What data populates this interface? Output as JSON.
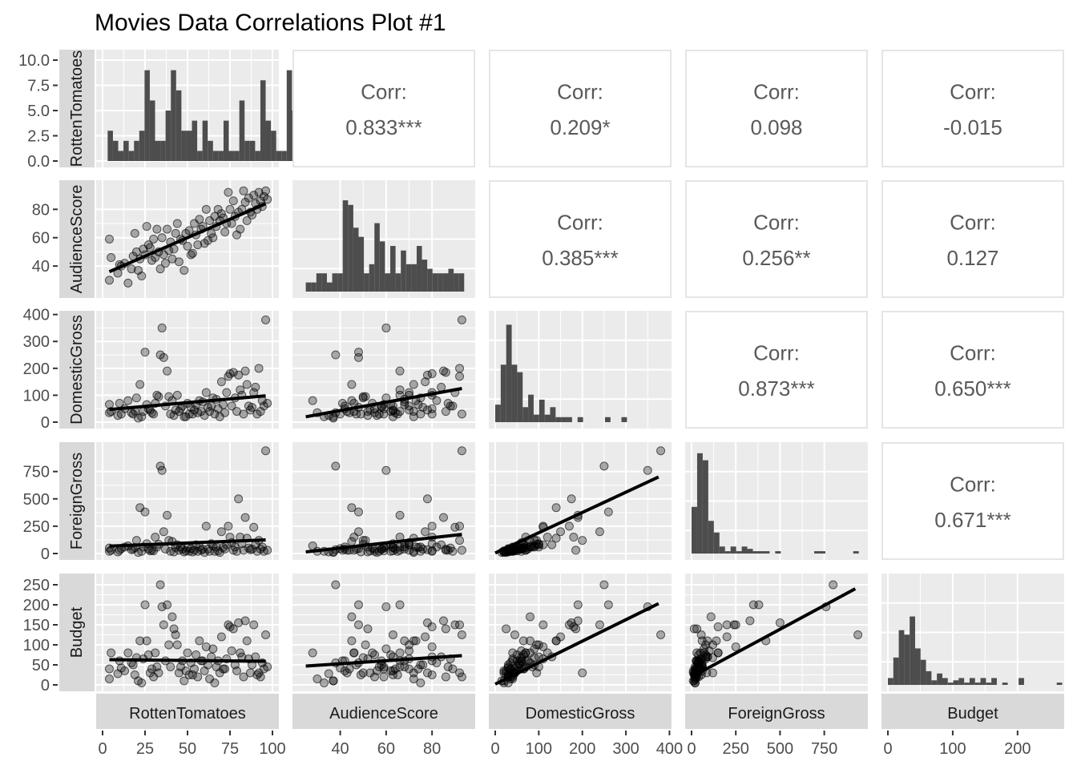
{
  "chart_data": {
    "type": "scatter-matrix",
    "title": "Movies Data Correlations Plot #1",
    "variables": [
      "RottenTomatoes",
      "AudienceScore",
      "DomesticGross",
      "ForeignGross",
      "Budget"
    ],
    "corr_label": "Corr:",
    "correlations": [
      {
        "row": 0,
        "col": 1,
        "value": "0.833***"
      },
      {
        "row": 0,
        "col": 2,
        "value": "0.209*"
      },
      {
        "row": 0,
        "col": 3,
        "value": "0.098"
      },
      {
        "row": 0,
        "col": 4,
        "value": "-0.015"
      },
      {
        "row": 1,
        "col": 2,
        "value": "0.385***"
      },
      {
        "row": 1,
        "col": 3,
        "value": "0.256**"
      },
      {
        "row": 1,
        "col": 4,
        "value": "0.127"
      },
      {
        "row": 2,
        "col": 3,
        "value": "0.873***"
      },
      {
        "row": 2,
        "col": 4,
        "value": "0.650***"
      },
      {
        "row": 3,
        "col": 4,
        "value": "0.671***"
      }
    ],
    "ranges": {
      "RottenTomatoes": [
        0,
        100
      ],
      "AudienceScore": [
        22,
        96
      ],
      "DomesticGross": [
        0,
        390
      ],
      "ForeignGross": [
        0,
        960
      ],
      "Budget": [
        0,
        262
      ]
    },
    "x_ticks": {
      "RottenTomatoes": [
        "0",
        "25",
        "50",
        "75",
        "100"
      ],
      "AudienceScore": [
        "40",
        "60",
        "80"
      ],
      "DomesticGross": [
        "0",
        "100",
        "200",
        "300",
        "400"
      ],
      "ForeignGross": [
        "0",
        "250",
        "500",
        "750"
      ],
      "Budget": [
        "0",
        "100",
        "200"
      ]
    },
    "x_tick_values": {
      "RottenTomatoes": [
        0,
        25,
        50,
        75,
        100
      ],
      "AudienceScore": [
        40,
        60,
        80
      ],
      "DomesticGross": [
        0,
        100,
        200,
        300,
        400
      ],
      "ForeignGross": [
        0,
        250,
        500,
        750
      ],
      "Budget": [
        0,
        100,
        200
      ]
    },
    "y_ticks": {
      "RottenTomatoes": [
        "0.0",
        "2.5",
        "5.0",
        "7.5",
        "10.0"
      ],
      "AudienceScore": [
        "40",
        "60",
        "80"
      ],
      "DomesticGross": [
        "0",
        "100",
        "200",
        "300",
        "400"
      ],
      "ForeignGross": [
        "0",
        "250",
        "500",
        "750"
      ],
      "Budget": [
        "0",
        "50",
        "100",
        "150",
        "200",
        "250"
      ]
    },
    "y_tick_values": {
      "RottenTomatoes": [
        0,
        2.5,
        5,
        7.5,
        10
      ],
      "AudienceScore": [
        40,
        60,
        80
      ],
      "DomesticGross": [
        0,
        100,
        200,
        300,
        400
      ],
      "ForeignGross": [
        0,
        250,
        500,
        750
      ],
      "Budget": [
        0,
        50,
        100,
        150,
        200,
        250
      ]
    },
    "histograms": {
      "RottenTomatoes": {
        "ymax": 10.4,
        "x0": 3,
        "binwidth": 3.1,
        "counts": [
          3,
          2,
          1,
          2,
          1,
          2,
          3,
          9,
          6,
          2,
          2,
          5,
          9,
          7,
          3,
          3,
          4,
          1,
          4,
          2,
          1,
          1,
          4,
          1,
          1,
          6,
          2,
          2,
          1,
          8,
          4,
          3,
          1,
          1,
          9,
          5,
          3,
          3,
          3
        ]
      },
      "AudienceScore": {
        "ymax": 23,
        "x0": 25,
        "binwidth": 2.3,
        "counts": [
          2,
          2,
          4,
          4,
          2,
          4,
          4,
          20,
          19,
          14,
          12,
          4,
          6,
          15,
          11,
          4,
          10,
          4,
          9,
          6,
          6,
          10,
          7,
          5,
          4,
          4,
          4,
          5,
          4,
          4
        ]
      },
      "DomesticGross": {
        "ymax": 42,
        "x0": 0,
        "binwidth": 12.6,
        "counts": [
          7,
          23,
          39,
          23,
          20,
          6,
          11,
          3,
          9,
          3,
          6,
          2,
          2,
          2,
          0,
          2,
          0,
          0,
          0,
          0,
          2,
          0,
          0,
          2
        ]
      },
      "ForeignGross": {
        "ymax": 45,
        "x0": 0,
        "binwidth": 31.5,
        "counts": [
          20,
          43,
          40,
          14,
          9,
          3,
          1,
          3,
          1,
          3,
          2,
          1,
          1,
          1,
          0,
          1,
          0,
          0,
          0,
          0,
          0,
          0,
          1,
          1,
          0,
          0,
          0,
          0,
          0,
          1
        ]
      },
      "Budget": {
        "ymax": 46,
        "x0": 0,
        "binwidth": 8.4,
        "counts": [
          3,
          12,
          24,
          22,
          30,
          16,
          11,
          6,
          2,
          5,
          3,
          1,
          2,
          3,
          1,
          3,
          1,
          3,
          1,
          3,
          0,
          1,
          0,
          0,
          3,
          0,
          0,
          0,
          0,
          0,
          0,
          1
        ]
      }
    },
    "fit_lines": {
      "1-0": [
        [
          4,
          36
        ],
        [
          96,
          84
        ]
      ],
      "2-0": [
        [
          4,
          47
        ],
        [
          96,
          98
        ]
      ],
      "2-1": [
        [
          25,
          20
        ],
        [
          93,
          125
        ]
      ],
      "3-0": [
        [
          4,
          68
        ],
        [
          96,
          125
        ]
      ],
      "3-1": [
        [
          25,
          15
        ],
        [
          93,
          175
        ]
      ],
      "3-2": [
        [
          0,
          5
        ],
        [
          375,
          700
        ]
      ],
      "4-0": [
        [
          4,
          63
        ],
        [
          96,
          59
        ]
      ],
      "4-1": [
        [
          25,
          47
        ],
        [
          93,
          73
        ]
      ],
      "4-2": [
        [
          0,
          2
        ],
        [
          375,
          203
        ]
      ],
      "4-3": [
        [
          0,
          20
        ],
        [
          925,
          240
        ]
      ]
    },
    "movies": [
      {
        "rt": 4,
        "as": 59,
        "dg": 66,
        "fg": 50,
        "bu": 40
      },
      {
        "rt": 4,
        "as": 30,
        "dg": 35,
        "fg": 20,
        "bu": 15
      },
      {
        "rt": 5,
        "as": 46,
        "dg": 40,
        "fg": 30,
        "bu": 80
      },
      {
        "rt": 9,
        "as": 35,
        "dg": 25,
        "fg": 15,
        "bu": 28
      },
      {
        "rt": 11,
        "as": 40,
        "dg": 30,
        "fg": 45,
        "bu": 42
      },
      {
        "rt": 13,
        "as": 42,
        "dg": 50,
        "fg": 60,
        "bu": 35
      },
      {
        "rt": 15,
        "as": 28,
        "dg": 80,
        "fg": 70,
        "bu": 80
      },
      {
        "rt": 17,
        "as": 38,
        "dg": 35,
        "fg": 35,
        "bu": 55
      },
      {
        "rt": 19,
        "as": 63,
        "dg": 42,
        "fg": 55,
        "bu": 25
      },
      {
        "rt": 20,
        "as": 50,
        "dg": 90,
        "fg": 120,
        "bu": 68
      },
      {
        "rt": 22,
        "as": 45,
        "dg": 140,
        "fg": 420,
        "bu": 110
      },
      {
        "rt": 23,
        "as": 33,
        "dg": 20,
        "fg": 20,
        "bu": 5
      },
      {
        "rt": 24,
        "as": 52,
        "dg": 40,
        "fg": 60,
        "bu": 65
      },
      {
        "rt": 25,
        "as": 48,
        "dg": 260,
        "fg": 380,
        "bu": 200
      },
      {
        "rt": 26,
        "as": 68,
        "dg": 65,
        "fg": 90,
        "bu": 110
      },
      {
        "rt": 27,
        "as": 55,
        "dg": 50,
        "fg": 40,
        "bu": 75
      },
      {
        "rt": 29,
        "as": 44,
        "dg": 35,
        "fg": 30,
        "bu": 40
      },
      {
        "rt": 30,
        "as": 59,
        "dg": 30,
        "fg": 25,
        "bu": 20
      },
      {
        "rt": 32,
        "as": 66,
        "dg": 100,
        "fg": 60,
        "bu": 45
      },
      {
        "rt": 33,
        "as": 50,
        "dg": 95,
        "fg": 85,
        "bu": 30
      },
      {
        "rt": 34,
        "as": 38,
        "dg": 250,
        "fg": 800,
        "bu": 250
      },
      {
        "rt": 35,
        "as": 60,
        "dg": 350,
        "fg": 760,
        "bu": 195
      },
      {
        "rt": 36,
        "as": 48,
        "dg": 240,
        "fg": 200,
        "bu": 150
      },
      {
        "rt": 37,
        "as": 42,
        "dg": 60,
        "fg": 40,
        "bu": 60
      },
      {
        "rt": 38,
        "as": 66,
        "dg": 190,
        "fg": 350,
        "bu": 200
      },
      {
        "rt": 40,
        "as": 57,
        "dg": 30,
        "fg": 20,
        "bu": 45
      },
      {
        "rt": 41,
        "as": 45,
        "dg": 80,
        "fg": 110,
        "bu": 170
      },
      {
        "rt": 42,
        "as": 52,
        "dg": 25,
        "fg": 15,
        "bu": 140
      },
      {
        "rt": 43,
        "as": 63,
        "dg": 45,
        "fg": 55,
        "bu": 125
      },
      {
        "rt": 44,
        "as": 70,
        "dg": 100,
        "fg": 80,
        "bu": 100
      },
      {
        "rt": 45,
        "as": 43,
        "dg": 40,
        "fg": 30,
        "bu": 30
      },
      {
        "rt": 47,
        "as": 58,
        "dg": 60,
        "fg": 40,
        "bu": 60
      },
      {
        "rt": 48,
        "as": 37,
        "dg": 20,
        "fg": 15,
        "bu": 10
      },
      {
        "rt": 50,
        "as": 54,
        "dg": 70,
        "fg": 50,
        "bu": 80
      },
      {
        "rt": 51,
        "as": 65,
        "dg": 30,
        "fg": 20,
        "bu": 25
      },
      {
        "rt": 52,
        "as": 48,
        "dg": 55,
        "fg": 45,
        "bu": 55
      },
      {
        "rt": 54,
        "as": 70,
        "dg": 45,
        "fg": 30,
        "bu": 40
      },
      {
        "rt": 55,
        "as": 62,
        "dg": 65,
        "fg": 80,
        "bu": 75
      },
      {
        "rt": 56,
        "as": 55,
        "dg": 35,
        "fg": 20,
        "bu": 20
      },
      {
        "rt": 57,
        "as": 73,
        "dg": 80,
        "fg": 60,
        "bu": 110
      },
      {
        "rt": 58,
        "as": 66,
        "dg": 40,
        "fg": 30,
        "bu": 60
      },
      {
        "rt": 60,
        "as": 56,
        "dg": 25,
        "fg": 10,
        "bu": 35
      },
      {
        "rt": 61,
        "as": 80,
        "dg": 110,
        "fg": 250,
        "bu": 95
      },
      {
        "rt": 62,
        "as": 58,
        "dg": 55,
        "fg": 40,
        "bu": 50
      },
      {
        "rt": 63,
        "as": 72,
        "dg": 40,
        "fg": 20,
        "bu": 15
      },
      {
        "rt": 64,
        "as": 63,
        "dg": 60,
        "fg": 90,
        "bu": 70
      },
      {
        "rt": 66,
        "as": 75,
        "dg": 30,
        "fg": 20,
        "bu": 5
      },
      {
        "rt": 67,
        "as": 68,
        "dg": 85,
        "fg": 60,
        "bu": 45
      },
      {
        "rt": 68,
        "as": 80,
        "dg": 50,
        "fg": 25,
        "bu": 60
      },
      {
        "rt": 69,
        "as": 72,
        "dg": 20,
        "fg": 10,
        "bu": 30
      },
      {
        "rt": 70,
        "as": 77,
        "dg": 150,
        "fg": 200,
        "bu": 120
      },
      {
        "rt": 72,
        "as": 64,
        "dg": 35,
        "fg": 40,
        "bu": 40
      },
      {
        "rt": 73,
        "as": 70,
        "dg": 110,
        "fg": 80,
        "bu": 65
      },
      {
        "rt": 74,
        "as": 92,
        "dg": 170,
        "fg": 250,
        "bu": 150
      },
      {
        "rt": 75,
        "as": 80,
        "dg": 180,
        "fg": 150,
        "bu": 145
      },
      {
        "rt": 76,
        "as": 70,
        "dg": 60,
        "fg": 100,
        "bu": 85
      },
      {
        "rt": 77,
        "as": 86,
        "dg": 185,
        "fg": 30,
        "bu": 140
      },
      {
        "rt": 78,
        "as": 75,
        "dg": 90,
        "fg": 60,
        "bu": 50
      },
      {
        "rt": 79,
        "as": 62,
        "dg": 40,
        "fg": 20,
        "bu": 35
      },
      {
        "rt": 80,
        "as": 78,
        "dg": 175,
        "fg": 500,
        "bu": 155
      },
      {
        "rt": 81,
        "as": 66,
        "dg": 120,
        "fg": 150,
        "bu": 80
      },
      {
        "rt": 82,
        "as": 80,
        "dg": 100,
        "fg": 90,
        "bu": 70
      },
      {
        "rt": 83,
        "as": 93,
        "dg": 30,
        "fg": 30,
        "bu": 20
      },
      {
        "rt": 84,
        "as": 85,
        "dg": 190,
        "fg": 330,
        "bu": 160
      },
      {
        "rt": 85,
        "as": 72,
        "dg": 140,
        "fg": 140,
        "bu": 110
      },
      {
        "rt": 86,
        "as": 88,
        "dg": 60,
        "fg": 50,
        "bu": 65
      },
      {
        "rt": 88,
        "as": 76,
        "dg": 55,
        "fg": 40,
        "bu": 50
      },
      {
        "rt": 89,
        "as": 90,
        "dg": 110,
        "fg": 240,
        "bu": 150
      },
      {
        "rt": 90,
        "as": 84,
        "dg": 130,
        "fg": 80,
        "bu": 70
      },
      {
        "rt": 91,
        "as": 80,
        "dg": 30,
        "fg": 20,
        "bu": 25
      },
      {
        "rt": 92,
        "as": 92,
        "dg": 200,
        "fg": 120,
        "bu": 30
      },
      {
        "rt": 93,
        "as": 86,
        "dg": 40,
        "fg": 40,
        "bu": 20
      },
      {
        "rt": 94,
        "as": 82,
        "dg": 80,
        "fg": 60,
        "bu": 55
      },
      {
        "rt": 95,
        "as": 89,
        "dg": 60,
        "fg": 20,
        "bu": 40
      },
      {
        "rt": 96,
        "as": 93,
        "dg": 380,
        "fg": 940,
        "bu": 125
      },
      {
        "rt": 97,
        "as": 87,
        "dg": 70,
        "fg": 30,
        "bu": 45
      },
      {
        "rt": 10,
        "as": 41,
        "dg": 70,
        "fg": 30,
        "bu": 60
      },
      {
        "rt": 18,
        "as": 47,
        "dg": 30,
        "fg": 40,
        "bu": 50
      },
      {
        "rt": 28,
        "as": 53,
        "dg": 45,
        "fg": 25,
        "bu": 30
      },
      {
        "rt": 31,
        "as": 46,
        "dg": 70,
        "fg": 150,
        "bu": 80
      },
      {
        "rt": 39,
        "as": 51,
        "dg": 95,
        "fg": 120,
        "bu": 100
      },
      {
        "rt": 46,
        "as": 59,
        "dg": 50,
        "fg": 60,
        "bu": 45
      },
      {
        "rt": 53,
        "as": 49,
        "dg": 30,
        "fg": 15,
        "bu": 25
      },
      {
        "rt": 59,
        "as": 68,
        "dg": 75,
        "fg": 40,
        "bu": 60
      },
      {
        "rt": 65,
        "as": 60,
        "dg": 90,
        "fg": 70,
        "bu": 90
      },
      {
        "rt": 71,
        "as": 74,
        "dg": 65,
        "fg": 55,
        "bu": 40
      },
      {
        "rt": 87,
        "as": 78,
        "dg": 45,
        "fg": 35,
        "bu": 30
      },
      {
        "rt": 21,
        "as": 37,
        "dg": 15,
        "fg": 10,
        "bu": 10
      },
      {
        "rt": 49,
        "as": 63,
        "dg": 20,
        "fg": 25,
        "bu": 35
      }
    ]
  }
}
